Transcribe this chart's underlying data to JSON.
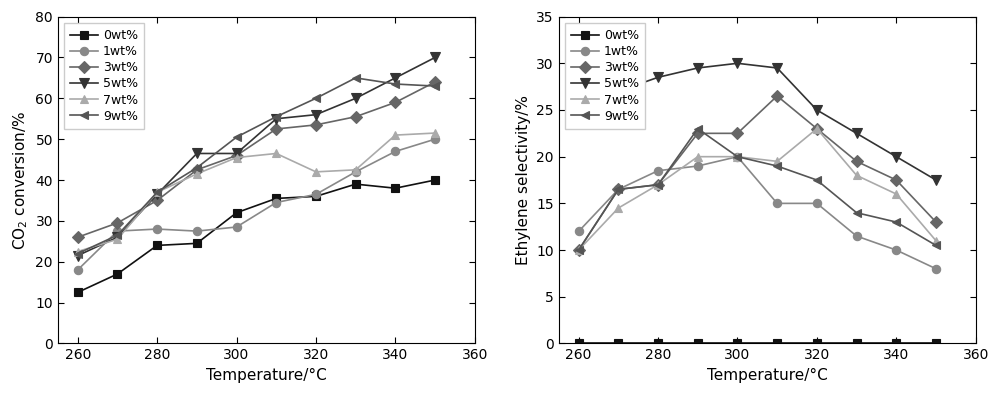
{
  "temperatures": [
    260,
    270,
    280,
    290,
    300,
    310,
    320,
    330,
    340,
    350
  ],
  "left_chart": {
    "ylabel": "CO$_2$ conversion/%",
    "xlabel": "Temperature/°C",
    "ylim": [
      0,
      80
    ],
    "yticks": [
      0,
      10,
      20,
      30,
      40,
      50,
      60,
      70,
      80
    ],
    "xlim": [
      255,
      360
    ],
    "xticks": [
      260,
      280,
      300,
      320,
      340,
      360
    ],
    "series": {
      "0wt%": [
        12.5,
        17.0,
        24.0,
        24.5,
        32.0,
        35.5,
        36.0,
        39.0,
        38.0,
        40.0
      ],
      "1wt%": [
        18.0,
        27.5,
        28.0,
        27.5,
        28.5,
        34.5,
        36.5,
        42.0,
        47.0,
        50.0
      ],
      "3wt%": [
        26.0,
        29.5,
        35.0,
        42.5,
        46.0,
        52.5,
        53.5,
        55.5,
        59.0,
        64.0
      ],
      "5wt%": [
        21.5,
        26.0,
        36.5,
        46.5,
        46.5,
        55.0,
        56.0,
        60.0,
        65.0,
        70.0
      ],
      "7wt%": [
        22.5,
        25.5,
        37.0,
        41.5,
        45.5,
        46.5,
        42.0,
        42.5,
        51.0,
        51.5
      ],
      "9wt%": [
        22.0,
        26.5,
        37.0,
        43.0,
        50.5,
        55.5,
        60.0,
        65.0,
        63.5,
        63.0
      ]
    }
  },
  "right_chart": {
    "ylabel": "Ethylene selectivity/%",
    "xlabel": "Temperature/°C",
    "ylim": [
      0,
      35
    ],
    "yticks": [
      0,
      5,
      10,
      15,
      20,
      25,
      30,
      35
    ],
    "xlim": [
      255,
      360
    ],
    "xticks": [
      260,
      280,
      300,
      320,
      340,
      360
    ],
    "series": {
      "0wt%": [
        0.0,
        0.0,
        0.0,
        0.0,
        0.0,
        0.0,
        0.0,
        0.0,
        0.0,
        0.0
      ],
      "1wt%": [
        12.0,
        16.5,
        18.5,
        19.0,
        20.0,
        15.0,
        15.0,
        11.5,
        10.0,
        8.0
      ],
      "3wt%": [
        10.0,
        16.5,
        17.0,
        22.5,
        22.5,
        26.5,
        23.0,
        19.5,
        17.5,
        13.0
      ],
      "5wt%": [
        25.0,
        27.0,
        28.5,
        29.5,
        30.0,
        29.5,
        25.0,
        22.5,
        20.0,
        17.5
      ],
      "7wt%": [
        10.0,
        14.5,
        17.0,
        20.0,
        20.0,
        19.5,
        23.0,
        18.0,
        16.0,
        11.0
      ],
      "9wt%": [
        10.0,
        16.5,
        17.0,
        23.0,
        20.0,
        19.0,
        17.5,
        14.0,
        13.0,
        10.5
      ]
    }
  },
  "series_styles": {
    "0wt%": {
      "color": "#111111",
      "marker": "s",
      "markersize": 6,
      "mfc": "#111111"
    },
    "1wt%": {
      "color": "#888888",
      "marker": "o",
      "markersize": 6,
      "mfc": "#888888"
    },
    "3wt%": {
      "color": "#666666",
      "marker": "D",
      "markersize": 6,
      "mfc": "#666666"
    },
    "5wt%": {
      "color": "#333333",
      "marker": "v",
      "markersize": 7,
      "mfc": "#333333"
    },
    "7wt%": {
      "color": "#aaaaaa",
      "marker": "^",
      "markersize": 6,
      "mfc": "#aaaaaa"
    },
    "9wt%": {
      "color": "#555555",
      "marker": "<",
      "markersize": 6,
      "mfc": "#555555"
    }
  },
  "legend_order": [
    "0wt%",
    "1wt%",
    "3wt%",
    "5wt%",
    "7wt%",
    "9wt%"
  ],
  "figsize": [
    10.0,
    3.94
  ],
  "dpi": 100,
  "linewidth": 1.2,
  "fontsize_label": 11,
  "fontsize_tick": 10,
  "fontsize_legend": 9
}
